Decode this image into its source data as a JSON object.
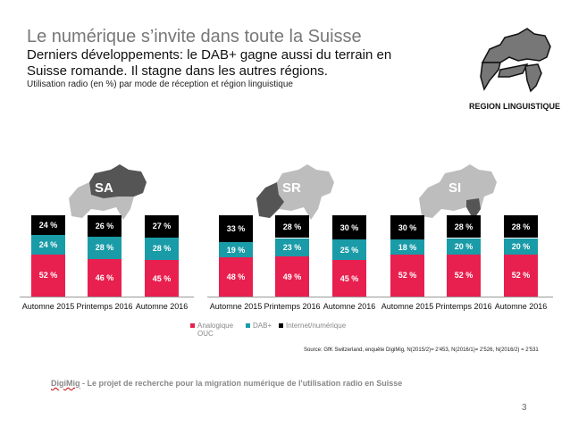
{
  "header": {
    "title": "Le numérique s’invite dans toute la Suisse",
    "subtitle": "Derniers développements: le DAB+ gagne aussi du terrain en Suisse romande. Il stagne dans les autres régions.",
    "description": "Utilisation radio (en %) par mode de réception et région linguistique",
    "region_label": "REGION LINGUISTIQUE"
  },
  "colors": {
    "analog": "#e8204f",
    "dab": "#1a9ba8",
    "internet": "#000000",
    "map_gray": "#bdbdbd",
    "map_dark": "#555555"
  },
  "chart_data": [
    {
      "type": "bar",
      "stacked": true,
      "region": "SA",
      "categories": [
        "Automne 2015",
        "Printemps 2016",
        "Automne 2016"
      ],
      "series": [
        {
          "name": "Analogique OUC",
          "values": [
            52,
            46,
            45
          ]
        },
        {
          "name": "DAB+",
          "values": [
            24,
            28,
            28
          ]
        },
        {
          "name": "Internet/numérique",
          "values": [
            24,
            26,
            27
          ]
        }
      ],
      "ylim": [
        0,
        100
      ],
      "unit": "%"
    },
    {
      "type": "bar",
      "stacked": true,
      "region": "SR",
      "categories": [
        "Automne 2015",
        "Printemps 2016",
        "Automne 2016"
      ],
      "series": [
        {
          "name": "Analogique OUC",
          "values": [
            48,
            49,
            45
          ]
        },
        {
          "name": "DAB+",
          "values": [
            19,
            23,
            25
          ]
        },
        {
          "name": "Internet/numérique",
          "values": [
            33,
            28,
            30
          ]
        }
      ],
      "ylim": [
        0,
        100
      ],
      "unit": "%"
    },
    {
      "type": "bar",
      "stacked": true,
      "region": "SI",
      "categories": [
        "Automne 2015",
        "Printemps 2016",
        "Automne 2016"
      ],
      "series": [
        {
          "name": "Analogique OUC",
          "values": [
            52,
            52,
            52
          ]
        },
        {
          "name": "DAB+",
          "values": [
            18,
            20,
            20
          ]
        },
        {
          "name": "Internet/numérique",
          "values": [
            30,
            28,
            28
          ]
        }
      ],
      "ylim": [
        0,
        100
      ],
      "unit": "%"
    }
  ],
  "legend": {
    "analog": "Analogique OUC",
    "dab": "DAB+",
    "internet": "Internet/numérique"
  },
  "source": "Source: GfK Switzerland, enquête DigiMig, N(2015/2)= 2'453, N(2016/1)= 2'526, N(2016/2) = 2'531",
  "footer": {
    "brand": "DigiMig",
    "text": " - Le projet de recherche pour la migration numérique de l'utilisation radio en Suisse"
  },
  "page_number": "3"
}
